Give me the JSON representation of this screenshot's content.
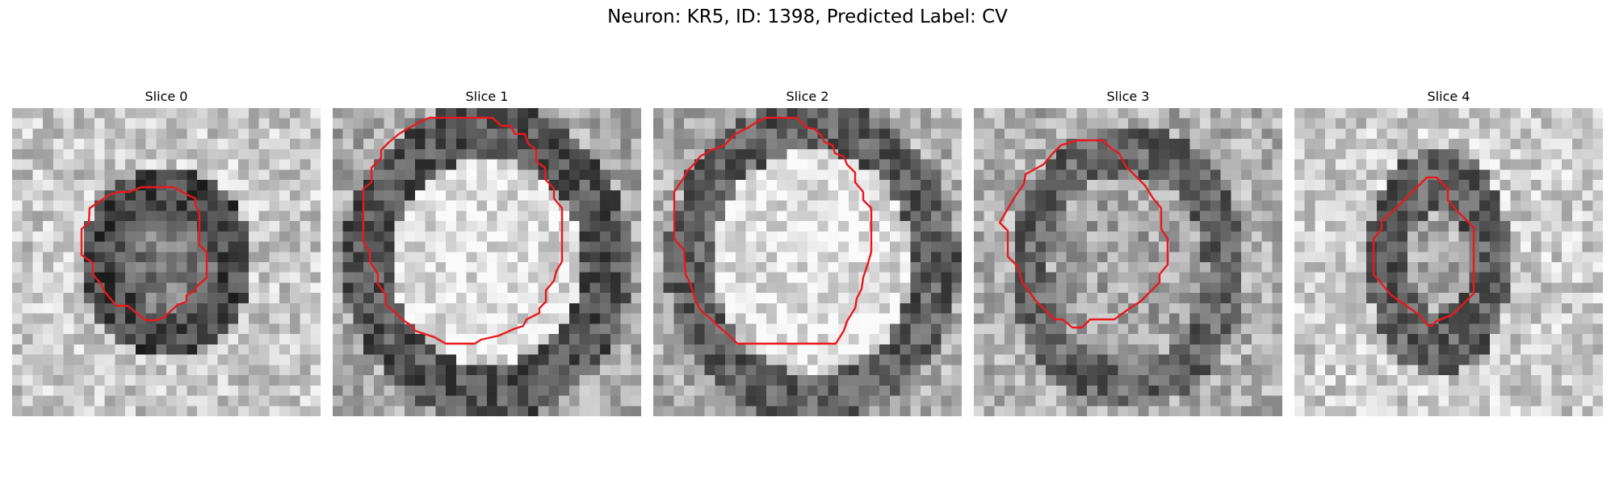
{
  "figure": {
    "title": "Neuron: KR5, ID: 1398, Predicted Label: CV",
    "contour_color": "#e8191f"
  },
  "panels": [
    {
      "title": "Slice 0"
    },
    {
      "title": "Slice 1"
    },
    {
      "title": "Slice 2"
    },
    {
      "title": "Slice 3"
    },
    {
      "title": "Slice 4"
    }
  ]
}
